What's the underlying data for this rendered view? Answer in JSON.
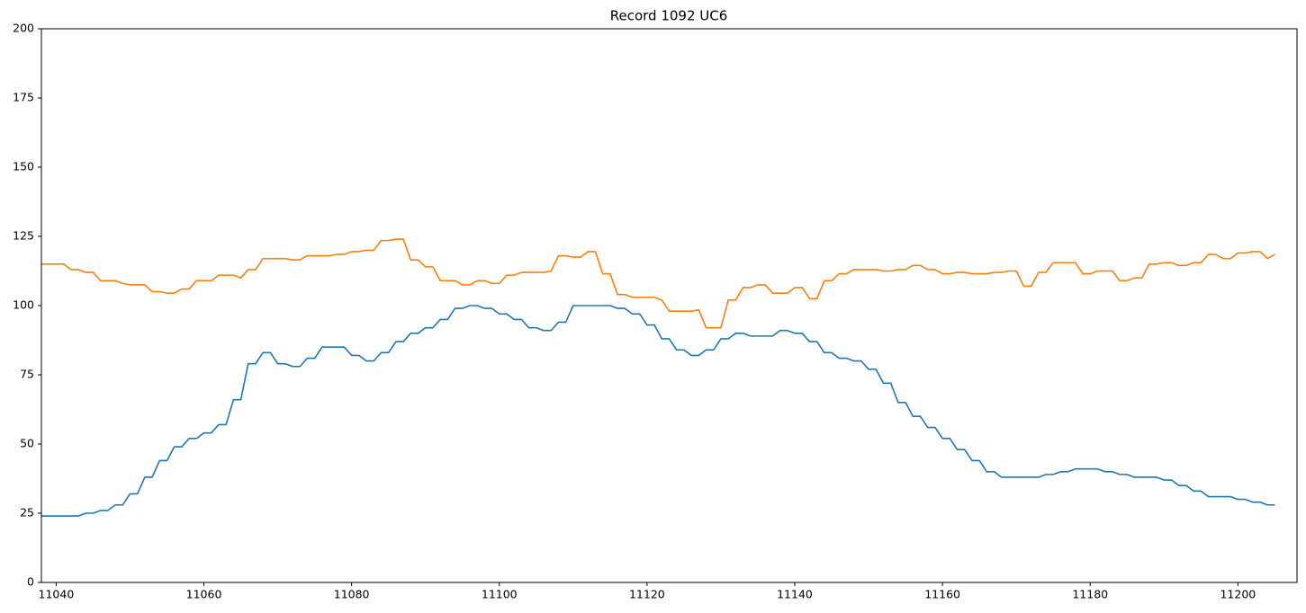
{
  "chart_data": {
    "type": "line",
    "title": "Record 1092 UC6",
    "x": [
      11038,
      11039,
      11040,
      11041,
      11042,
      11043,
      11044,
      11045,
      11046,
      11047,
      11048,
      11049,
      11050,
      11051,
      11052,
      11053,
      11054,
      11055,
      11056,
      11057,
      11058,
      11059,
      11060,
      11061,
      11062,
      11063,
      11064,
      11065,
      11066,
      11067,
      11068,
      11069,
      11070,
      11071,
      11072,
      11073,
      11074,
      11075,
      11076,
      11077,
      11078,
      11079,
      11080,
      11081,
      11082,
      11083,
      11084,
      11085,
      11086,
      11087,
      11088,
      11089,
      11090,
      11091,
      11092,
      11093,
      11094,
      11095,
      11096,
      11097,
      11098,
      11099,
      11100,
      11101,
      11102,
      11103,
      11104,
      11105,
      11106,
      11107,
      11108,
      11109,
      11110,
      11111,
      11112,
      11113,
      11114,
      11115,
      11116,
      11117,
      11118,
      11119,
      11120,
      11121,
      11122,
      11123,
      11124,
      11125,
      11126,
      11127,
      11128,
      11129,
      11130,
      11131,
      11132,
      11133,
      11134,
      11135,
      11136,
      11137,
      11138,
      11139,
      11140,
      11141,
      11142,
      11143,
      11144,
      11145,
      11146,
      11147,
      11148,
      11149,
      11150,
      11151,
      11152,
      11153,
      11154,
      11155,
      11156,
      11157,
      11158,
      11159,
      11160,
      11161,
      11162,
      11163,
      11164,
      11165,
      11166,
      11167,
      11168,
      11169,
      11170,
      11171,
      11172,
      11173,
      11174,
      11175,
      11176,
      11177,
      11178,
      11179,
      11180,
      11181,
      11182,
      11183,
      11184,
      11185,
      11186,
      11187,
      11188,
      11189,
      11190,
      11191,
      11192,
      11193,
      11194,
      11195,
      11196,
      11197,
      11198,
      11199,
      11200,
      11201,
      11202,
      11203,
      11204,
      11205
    ],
    "series": [
      {
        "color": "#1f77b4",
        "values": [
          24,
          24,
          24,
          24,
          24,
          24,
          25,
          25,
          26,
          26,
          28,
          28,
          32,
          32,
          38,
          38,
          44,
          44,
          49,
          49,
          52,
          52,
          54,
          54,
          57,
          57,
          66,
          66,
          79,
          79,
          83,
          83,
          79,
          79,
          78,
          78,
          81,
          81,
          85,
          85,
          85,
          85,
          82,
          82,
          80,
          80,
          83,
          83,
          87,
          87,
          90,
          90,
          92,
          92,
          95,
          95,
          99,
          99,
          100,
          100,
          99,
          99,
          97,
          97,
          95,
          95,
          92,
          92,
          91,
          91,
          94,
          94,
          100,
          100,
          100,
          100,
          100,
          100,
          99,
          99,
          97,
          97,
          93,
          93,
          88,
          88,
          84,
          84,
          82,
          82,
          84,
          84,
          88,
          88,
          90,
          90,
          89,
          89,
          89,
          89,
          91,
          91,
          90,
          90,
          87,
          87,
          83,
          83,
          81,
          81,
          80,
          80,
          77,
          77,
          72,
          72,
          65,
          65,
          60,
          60,
          56,
          56,
          52,
          52,
          48,
          48,
          44,
          44,
          40,
          40,
          38,
          38,
          38,
          38,
          38,
          38,
          39,
          39,
          40,
          40,
          41,
          41,
          41,
          41,
          40,
          40,
          39,
          39,
          38,
          38,
          38,
          38,
          37,
          37,
          35,
          35,
          33,
          33,
          31,
          31,
          31,
          31,
          30,
          30,
          29,
          29,
          28,
          28
        ]
      },
      {
        "color": "#ff7f0e",
        "values": [
          115,
          115,
          115,
          115,
          113,
          113,
          112,
          112,
          109,
          109,
          109,
          108,
          107.5,
          107.5,
          107.5,
          105,
          105,
          104.5,
          104.5,
          106,
          106,
          109,
          109,
          109,
          111,
          111,
          111,
          110,
          113,
          113,
          117,
          117,
          117,
          117,
          116.5,
          116.5,
          118,
          118,
          118,
          118,
          118.5,
          118.5,
          119.5,
          119.5,
          120,
          120,
          123.5,
          123.5,
          124,
          124,
          116.5,
          116.5,
          114,
          114,
          109,
          109,
          109,
          107.5,
          107.5,
          109,
          109,
          108,
          108,
          111,
          111,
          112,
          112,
          112,
          112,
          112.5,
          118,
          118,
          117.5,
          117.5,
          119.5,
          119.5,
          111.5,
          111.5,
          104,
          104,
          103,
          103,
          103,
          103,
          102,
          98,
          98,
          98,
          98,
          98.5,
          92,
          92,
          92,
          102,
          102,
          106.5,
          106.5,
          107.5,
          107.5,
          104.5,
          104.5,
          104.5,
          106.5,
          106.5,
          102.5,
          102.5,
          109,
          109,
          111.5,
          111.5,
          113,
          113,
          113,
          113,
          112.5,
          112.5,
          113,
          113,
          114.5,
          114.5,
          113,
          113,
          111.5,
          111.5,
          112,
          112,
          111.5,
          111.5,
          111.5,
          112,
          112,
          112.5,
          112.5,
          107,
          107,
          112,
          112,
          115.5,
          115.5,
          115.5,
          115.5,
          111.5,
          111.5,
          112.5,
          112.5,
          112.5,
          109,
          109,
          110,
          110,
          115,
          115,
          115.5,
          115.5,
          114.5,
          114.5,
          115.5,
          115.5,
          118.5,
          118.5,
          117,
          117,
          119,
          119,
          119.5,
          119.5,
          117,
          118.5
        ]
      }
    ],
    "xlim": [
      11038,
      11208
    ],
    "xticks": [
      11040,
      11060,
      11080,
      11100,
      11120,
      11140,
      11160,
      11180,
      11200
    ],
    "ylim": [
      0,
      200
    ],
    "yticks": [
      0,
      25,
      50,
      75,
      100,
      125,
      150,
      175,
      200
    ],
    "grid": false
  }
}
